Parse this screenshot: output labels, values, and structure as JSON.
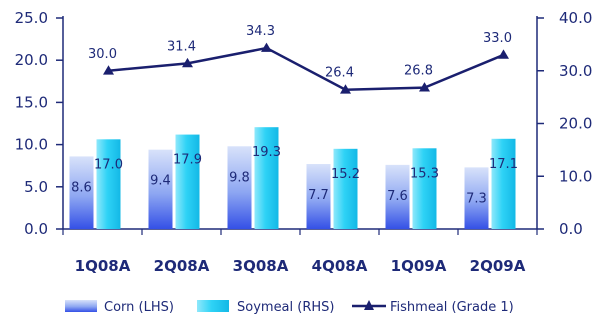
{
  "chart_data": {
    "type": "bar",
    "categories": [
      "1Q08A",
      "2Q08A",
      "3Q08A",
      "4Q08A",
      "1Q09A",
      "2Q09A"
    ],
    "series": [
      {
        "name": "Corn (LHS)",
        "type": "bar",
        "axis": "left",
        "values": [
          8.6,
          9.4,
          9.8,
          7.7,
          7.6,
          7.3
        ],
        "color": "#4a6cf0"
      },
      {
        "name": "Soymeal (RHS)",
        "type": "bar",
        "axis": "right",
        "values": [
          17.0,
          17.9,
          19.3,
          15.2,
          15.3,
          17.1
        ],
        "color": "#28d0f4"
      },
      {
        "name": "Fishmeal (Grade 1)",
        "type": "line",
        "axis": "right",
        "values": [
          30.0,
          31.4,
          34.3,
          26.4,
          26.8,
          33.0
        ],
        "color": "#1a1f6e"
      }
    ],
    "left_axis": {
      "ylim": [
        0,
        25
      ],
      "ticks": [
        "0.0",
        "5.0",
        "10.0",
        "15.0",
        "20.0",
        "25.0"
      ]
    },
    "right_axis": {
      "ylim": [
        0,
        40
      ],
      "ticks": [
        "0.0",
        "10.0",
        "20.0",
        "30.0",
        "40.0"
      ]
    },
    "corn_labels": [
      "8.6",
      "9.4",
      "9.8",
      "7.7",
      "7.6",
      "7.3"
    ],
    "soymeal_labels": [
      "17.0",
      "17.9",
      "19.3",
      "15.2",
      "15.3",
      "17.1"
    ],
    "fishmeal_labels": [
      "30.0",
      "31.4",
      "34.3",
      "26.4",
      "26.8",
      "33.0"
    ],
    "legend": {
      "position": "bottom",
      "items": [
        "Corn (LHS)",
        "Soymeal (RHS)",
        "Fishmeal (Grade 1)"
      ]
    },
    "grid": false,
    "axis_color": "#1e2a78"
  }
}
